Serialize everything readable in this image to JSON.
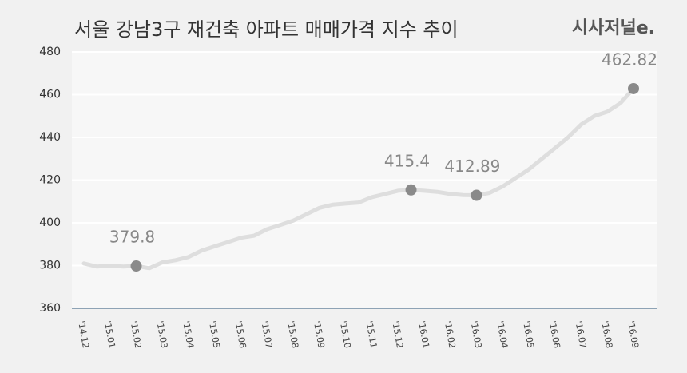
{
  "chart_data": {
    "type": "line",
    "title": "서울 강남3구 재건축 아파트 매매가격 지수 추이",
    "brand": "시사저널e.",
    "categories": [
      "'14.12",
      null,
      "'15.01",
      null,
      "'15.02",
      null,
      "'15.03",
      null,
      "'15.04",
      null,
      "'15.05",
      null,
      "'15.06",
      null,
      "'15.07",
      null,
      "'15.08",
      null,
      "'15.09",
      null,
      "'15.10",
      null,
      "'15.11",
      null,
      "'15.12",
      null,
      "'16.01",
      null,
      "'16.02",
      null,
      "'16.03",
      null,
      "'16.04",
      null,
      "'16.05",
      null,
      "'16.06",
      null,
      "'16.07",
      null,
      "'16.08",
      null,
      "'16.09"
    ],
    "series": [
      {
        "color": "#dedede",
        "marker_color": "#8a8a8a",
        "markers": [
          4,
          25,
          30,
          42
        ],
        "values": [
          381,
          379.5,
          380,
          379.5,
          379.8,
          378.78,
          381.5,
          382.5,
          384,
          387,
          389,
          391,
          393,
          394,
          397,
          399,
          401,
          404,
          407,
          408.5,
          409,
          409.5,
          412,
          413.5,
          415,
          415.4,
          415,
          414.5,
          413.5,
          413,
          412.89,
          414,
          417,
          421,
          425,
          430,
          435,
          440,
          446,
          450,
          452,
          456,
          462.82
        ]
      }
    ],
    "ylim": [
      360,
      480
    ],
    "yticks": [
      360,
      380,
      400,
      420,
      440,
      460,
      480
    ],
    "grid": true
  }
}
